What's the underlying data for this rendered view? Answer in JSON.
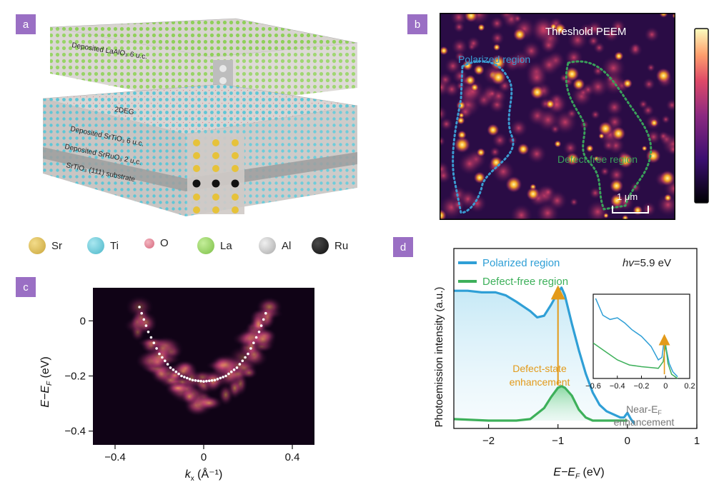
{
  "panels": {
    "a": {
      "tag": "a",
      "layers": {
        "top": "Deposited LaAlO₃ 6 u.c.",
        "twodeg": "2DEG",
        "srtio3": "Deposited SrTiO₃ 6 u.c.",
        "srruo3": "Deposited SrRuO₃ 2 u.c.",
        "substrate": "SrTiO₃ (111) substrate"
      },
      "legend": [
        {
          "label": "Sr",
          "color": "#d9b84a"
        },
        {
          "label": "Ti",
          "color": "#5ec6d6"
        },
        {
          "label": "O",
          "color": "#e07a8c"
        },
        {
          "label": "La",
          "color": "#8fcf5a"
        },
        {
          "label": "Al",
          "color": "#c9c9c9"
        },
        {
          "label": "Ru",
          "color": "#1e1e1e"
        }
      ]
    },
    "b": {
      "tag": "b",
      "title": "Threshold PEEM",
      "label_polarized": "Polarized region",
      "label_defect": "Defect-free region",
      "scalebar": "1 μm",
      "polarized_color": "#3a9bd1",
      "defect_color": "#3aa05a"
    },
    "c": {
      "tag": "c",
      "xlabel": "k",
      "xlabel_sub": "x",
      "xlabel_unit": " (Å⁻¹)",
      "ylabel": "E−E",
      "ylabel_sub": "F",
      "ylabel_unit": " (eV)"
    },
    "d": {
      "tag": "d",
      "ylabel": "Photoemission intensity (a.u.)",
      "xlabel": "E−E",
      "xlabel_sub": "F",
      "xlabel_unit": " (eV)",
      "photon_label": "hv",
      "photon_value": "=5.9 eV",
      "annotation_main": [
        "Defect-state",
        "enhancement"
      ],
      "annotation_inset": "Near-E",
      "annotation_inset_sub": "F",
      "annotation_inset_2": "enhancement",
      "arrow_color": "#e39a1a"
    }
  },
  "chart_data": [
    {
      "type": "scatter",
      "panel": "c",
      "xlim": [
        -0.5,
        0.5
      ],
      "ylim": [
        -0.45,
        0.12
      ],
      "x_ticks": [
        -0.4,
        0,
        0.4
      ],
      "x_tick_labels": [
        "−0.4",
        "0",
        "0.4"
      ],
      "y_ticks": [
        0,
        -0.2,
        -0.4
      ],
      "y_tick_labels": [
        "0",
        "−0.2",
        "−0.4"
      ],
      "dispersion": {
        "x": [
          -0.29,
          -0.25,
          -0.2,
          -0.15,
          -0.1,
          -0.05,
          0,
          0.05,
          0.1,
          0.15,
          0.2,
          0.25,
          0.29
        ],
        "y": [
          0.05,
          -0.04,
          -0.12,
          -0.17,
          -0.2,
          -0.215,
          -0.22,
          -0.215,
          -0.2,
          -0.17,
          -0.12,
          -0.04,
          0.05
        ]
      }
    },
    {
      "type": "line",
      "panel": "d",
      "xlim": [
        -2.5,
        1.0
      ],
      "x_ticks": [
        -2,
        -1,
        0,
        1
      ],
      "x_tick_labels": [
        "−2",
        "−1",
        "0",
        "1"
      ],
      "series": [
        {
          "name": "Polarized region",
          "color": "#2f9fd6",
          "x": [
            -2.5,
            -2.3,
            -2.1,
            -1.9,
            -1.75,
            -1.6,
            -1.5,
            -1.4,
            -1.3,
            -1.2,
            -1.1,
            -1.0,
            -0.95,
            -0.9,
            -0.8,
            -0.7,
            -0.6,
            -0.5,
            -0.4,
            -0.3,
            -0.2,
            -0.1,
            -0.05,
            0.0,
            0.05,
            0.1
          ],
          "y": [
            0.83,
            0.83,
            0.82,
            0.82,
            0.8,
            0.76,
            0.73,
            0.7,
            0.66,
            0.67,
            0.74,
            0.82,
            0.85,
            0.8,
            0.62,
            0.45,
            0.3,
            0.18,
            0.1,
            0.06,
            0.04,
            0.02,
            0.02,
            0.05,
            0.01,
            -0.02
          ]
        },
        {
          "name": "Defect-free region",
          "color": "#3db05a",
          "x": [
            -2.5,
            -2.0,
            -1.6,
            -1.4,
            -1.2,
            -1.1,
            -1.0,
            -0.95,
            -0.9,
            -0.8,
            -0.7,
            -0.6,
            -0.5,
            -0.4,
            -0.2,
            0.0
          ],
          "y": [
            0.01,
            0.0,
            0.0,
            0.01,
            0.08,
            0.15,
            0.21,
            0.22,
            0.21,
            0.16,
            0.07,
            0.02,
            0.0,
            0.0,
            0.0,
            0.0
          ]
        }
      ]
    },
    {
      "type": "line",
      "panel": "d-inset",
      "xlim": [
        -0.6,
        0.2
      ],
      "x_ticks": [
        -0.6,
        -0.4,
        -0.2,
        0,
        0.2
      ],
      "x_tick_labels": [
        "−0.6",
        "−0.4",
        "−0.2",
        "0",
        "0.2"
      ],
      "series": [
        {
          "name": "Polarized region",
          "color": "#2f9fd6",
          "x": [
            -0.58,
            -0.52,
            -0.46,
            -0.4,
            -0.34,
            -0.28,
            -0.2,
            -0.12,
            -0.06,
            -0.03,
            -0.01,
            0.01,
            0.03,
            0.06,
            0.1
          ],
          "y": [
            0.95,
            0.75,
            0.7,
            0.72,
            0.66,
            0.58,
            0.5,
            0.38,
            0.22,
            0.25,
            0.48,
            0.32,
            0.18,
            0.08,
            0.02
          ]
        },
        {
          "name": "Defect-free region",
          "color": "#3db05a",
          "x": [
            -0.6,
            -0.5,
            -0.4,
            -0.3,
            -0.2,
            -0.12,
            -0.06,
            -0.02,
            0.0,
            0.02,
            0.05,
            0.1
          ],
          "y": [
            0.42,
            0.32,
            0.22,
            0.16,
            0.14,
            0.13,
            0.12,
            0.2,
            0.4,
            0.18,
            0.05,
            0.0
          ]
        }
      ]
    }
  ]
}
